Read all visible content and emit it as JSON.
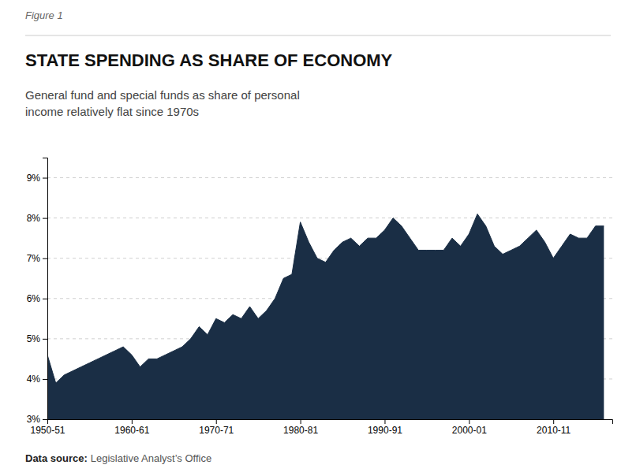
{
  "chart_data": {
    "type": "area",
    "title": "STATE SPENDING AS SHARE OF ECONOMY",
    "subtitle": "General fund and special funds as share of personal\nincome relatively flat since 1970s",
    "annotations": [
      "Figure 1",
      "Data source:",
      "Legislative Analyst’s Office"
    ],
    "color": "#1a2e45",
    "grid": true,
    "x": [
      1950,
      1951,
      1952,
      1953,
      1954,
      1955,
      1956,
      1957,
      1958,
      1959,
      1960,
      1961,
      1962,
      1963,
      1964,
      1965,
      1966,
      1967,
      1968,
      1969,
      1970,
      1971,
      1972,
      1973,
      1974,
      1975,
      1976,
      1977,
      1978,
      1979,
      1980,
      1981,
      1982,
      1983,
      1984,
      1985,
      1986,
      1987,
      1988,
      1989,
      1990,
      1991,
      1992,
      1993,
      1994,
      1995,
      1996,
      1997,
      1998,
      1999,
      2000,
      2001,
      2002,
      2003,
      2004,
      2005,
      2006,
      2007,
      2008,
      2009,
      2010,
      2011,
      2012,
      2013,
      2014,
      2015,
      2016
    ],
    "values": [
      4.6,
      3.9,
      4.1,
      4.2,
      4.3,
      4.4,
      4.5,
      4.6,
      4.7,
      4.8,
      4.6,
      4.3,
      4.5,
      4.5,
      4.6,
      4.7,
      4.8,
      5.0,
      5.3,
      5.1,
      5.5,
      5.4,
      5.6,
      5.5,
      5.8,
      5.5,
      5.7,
      6.0,
      6.5,
      6.6,
      7.9,
      7.4,
      7.0,
      6.9,
      7.2,
      7.4,
      7.5,
      7.3,
      7.5,
      7.5,
      7.7,
      8.0,
      7.8,
      7.5,
      7.2,
      7.2,
      7.2,
      7.2,
      7.5,
      7.3,
      7.6,
      8.1,
      7.8,
      7.3,
      7.1,
      7.2,
      7.3,
      7.5,
      7.7,
      7.4,
      7.0,
      7.3,
      7.6,
      7.5,
      7.5,
      7.8,
      7.8
    ],
    "xlim": [
      1950,
      2017
    ],
    "xticks": [
      {
        "value": 1950,
        "label": "1950-51"
      },
      {
        "value": 1960,
        "label": "1960-61"
      },
      {
        "value": 1970,
        "label": "1970-71"
      },
      {
        "value": 1980,
        "label": "1980-81"
      },
      {
        "value": 1990,
        "label": "1990-91"
      },
      {
        "value": 2000,
        "label": "2000-01"
      },
      {
        "value": 2010,
        "label": "2010-11"
      }
    ],
    "ylim": [
      3,
      9.5
    ],
    "yticks": [
      {
        "value": 3,
        "label": "3%"
      },
      {
        "value": 4,
        "label": "4%"
      },
      {
        "value": 5,
        "label": "5%"
      },
      {
        "value": 6,
        "label": "6%"
      },
      {
        "value": 7,
        "label": "7%"
      },
      {
        "value": 8,
        "label": "8%"
      },
      {
        "value": 9,
        "label": "9%"
      }
    ]
  }
}
